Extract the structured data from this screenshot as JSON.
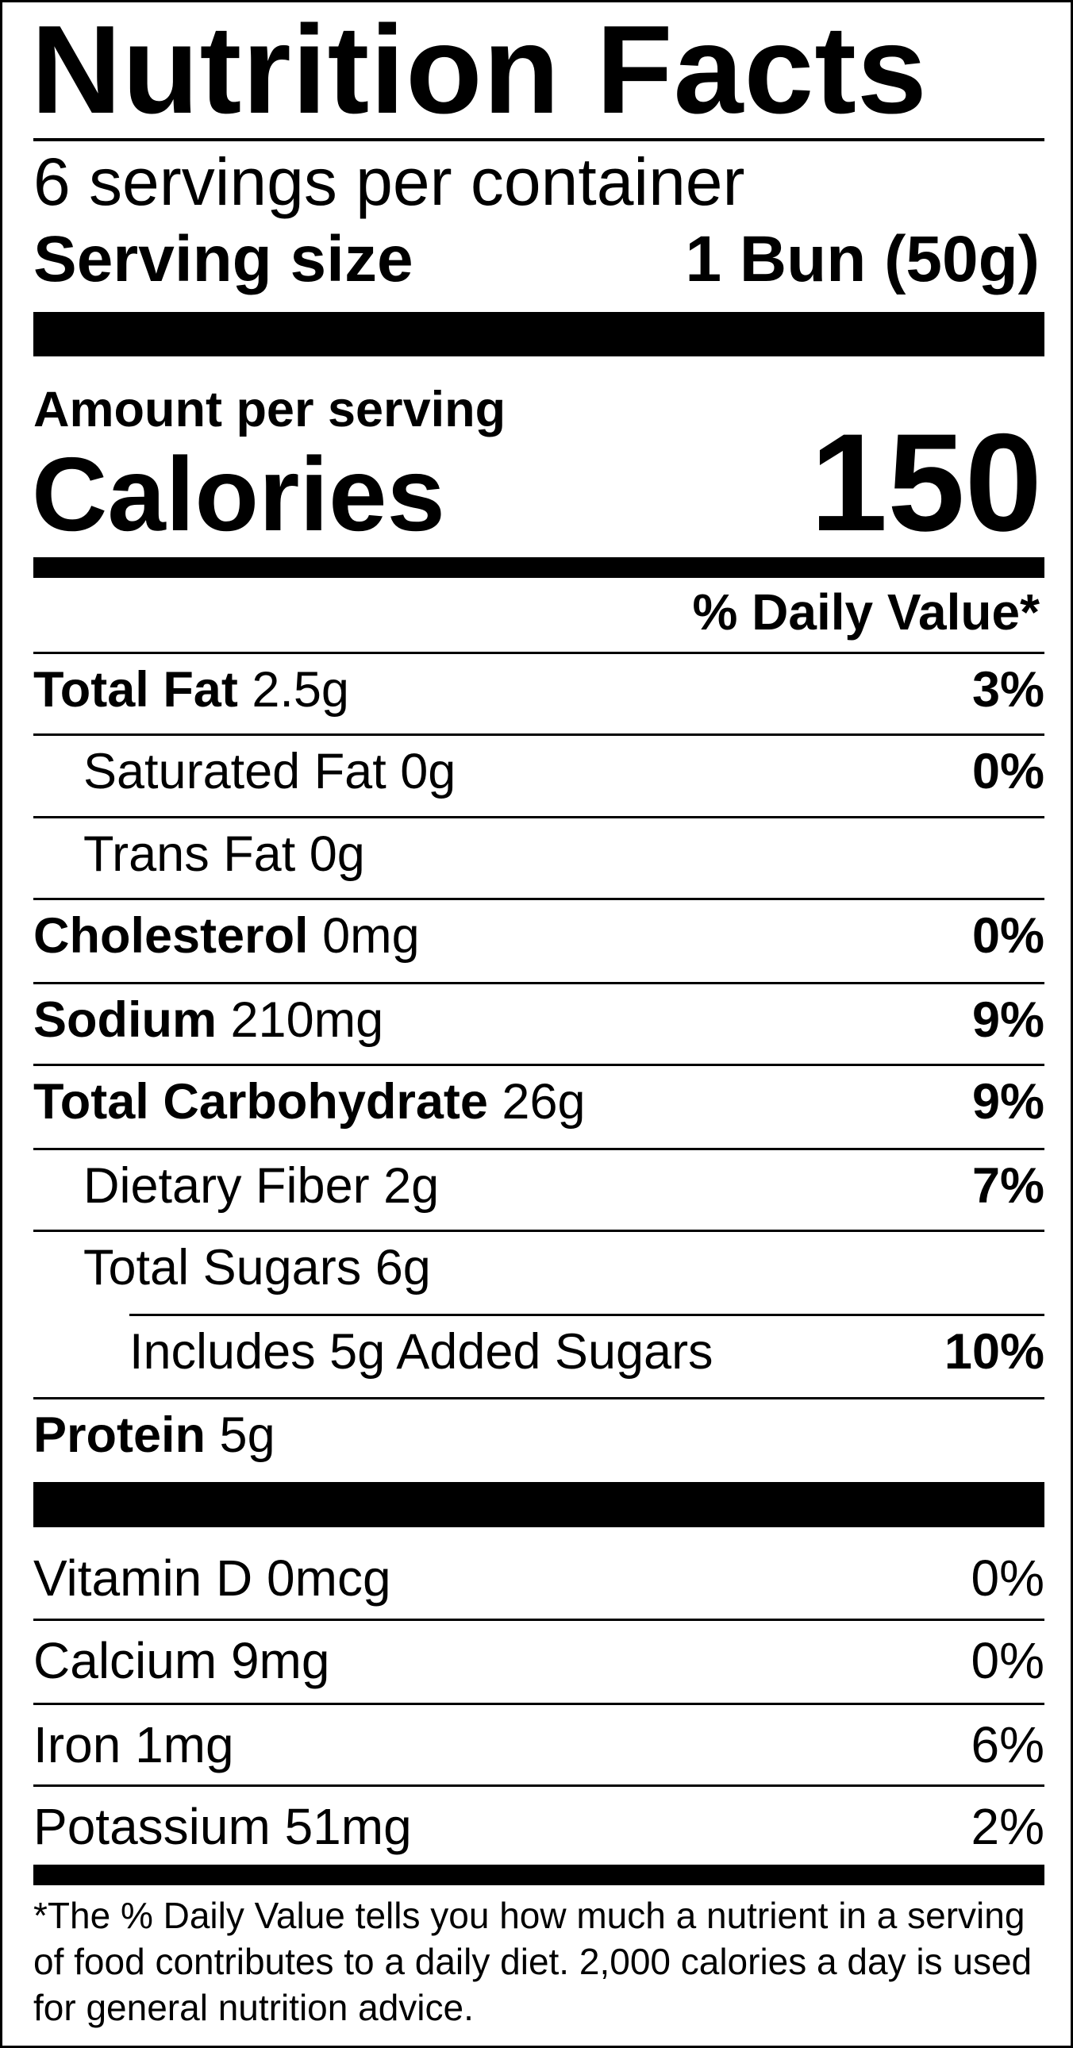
{
  "title": "Nutrition Facts",
  "servings_per_container": "6 servings per container",
  "serving_size": {
    "label": "Serving size",
    "value": "1 Bun (50g)"
  },
  "amount_per_serving": "Amount per serving",
  "calories": {
    "label": "Calories",
    "value": "150"
  },
  "daily_value_header": "% Daily Value*",
  "nutrients": [
    {
      "name": "Total Fat",
      "amount": "2.5g",
      "dv": "3%"
    },
    {
      "name": "Saturated Fat",
      "amount": "0g",
      "dv": "0%"
    },
    {
      "name": "Trans Fat",
      "amount": "0g"
    },
    {
      "name": "Cholesterol",
      "amount": "0mg",
      "dv": "0%"
    },
    {
      "name": "Sodium",
      "amount": "210mg",
      "dv": "9%"
    },
    {
      "name": "Total Carbohydrate",
      "amount": "26g",
      "dv": "9%"
    },
    {
      "name": "Dietary Fiber",
      "amount": "2g",
      "dv": "7%"
    },
    {
      "name": "Total Sugars",
      "amount": "6g"
    },
    {
      "name": "Includes 5g Added Sugars",
      "dv": "10%"
    },
    {
      "name": "Protein",
      "amount": "5g"
    }
  ],
  "vitamins": [
    {
      "name": "Vitamin D",
      "amount": "0mcg",
      "dv": "0%"
    },
    {
      "name": "Calcium",
      "amount": "9mg",
      "dv": "0%"
    },
    {
      "name": "Iron",
      "amount": "1mg",
      "dv": "6%"
    },
    {
      "name": "Potassium",
      "amount": "51mg",
      "dv": "2%"
    }
  ],
  "footnote": "*The % Daily Value tells you how much a nutrient in a serving of food contributes to a daily diet. 2,000 calories a day is used for general nutrition advice."
}
